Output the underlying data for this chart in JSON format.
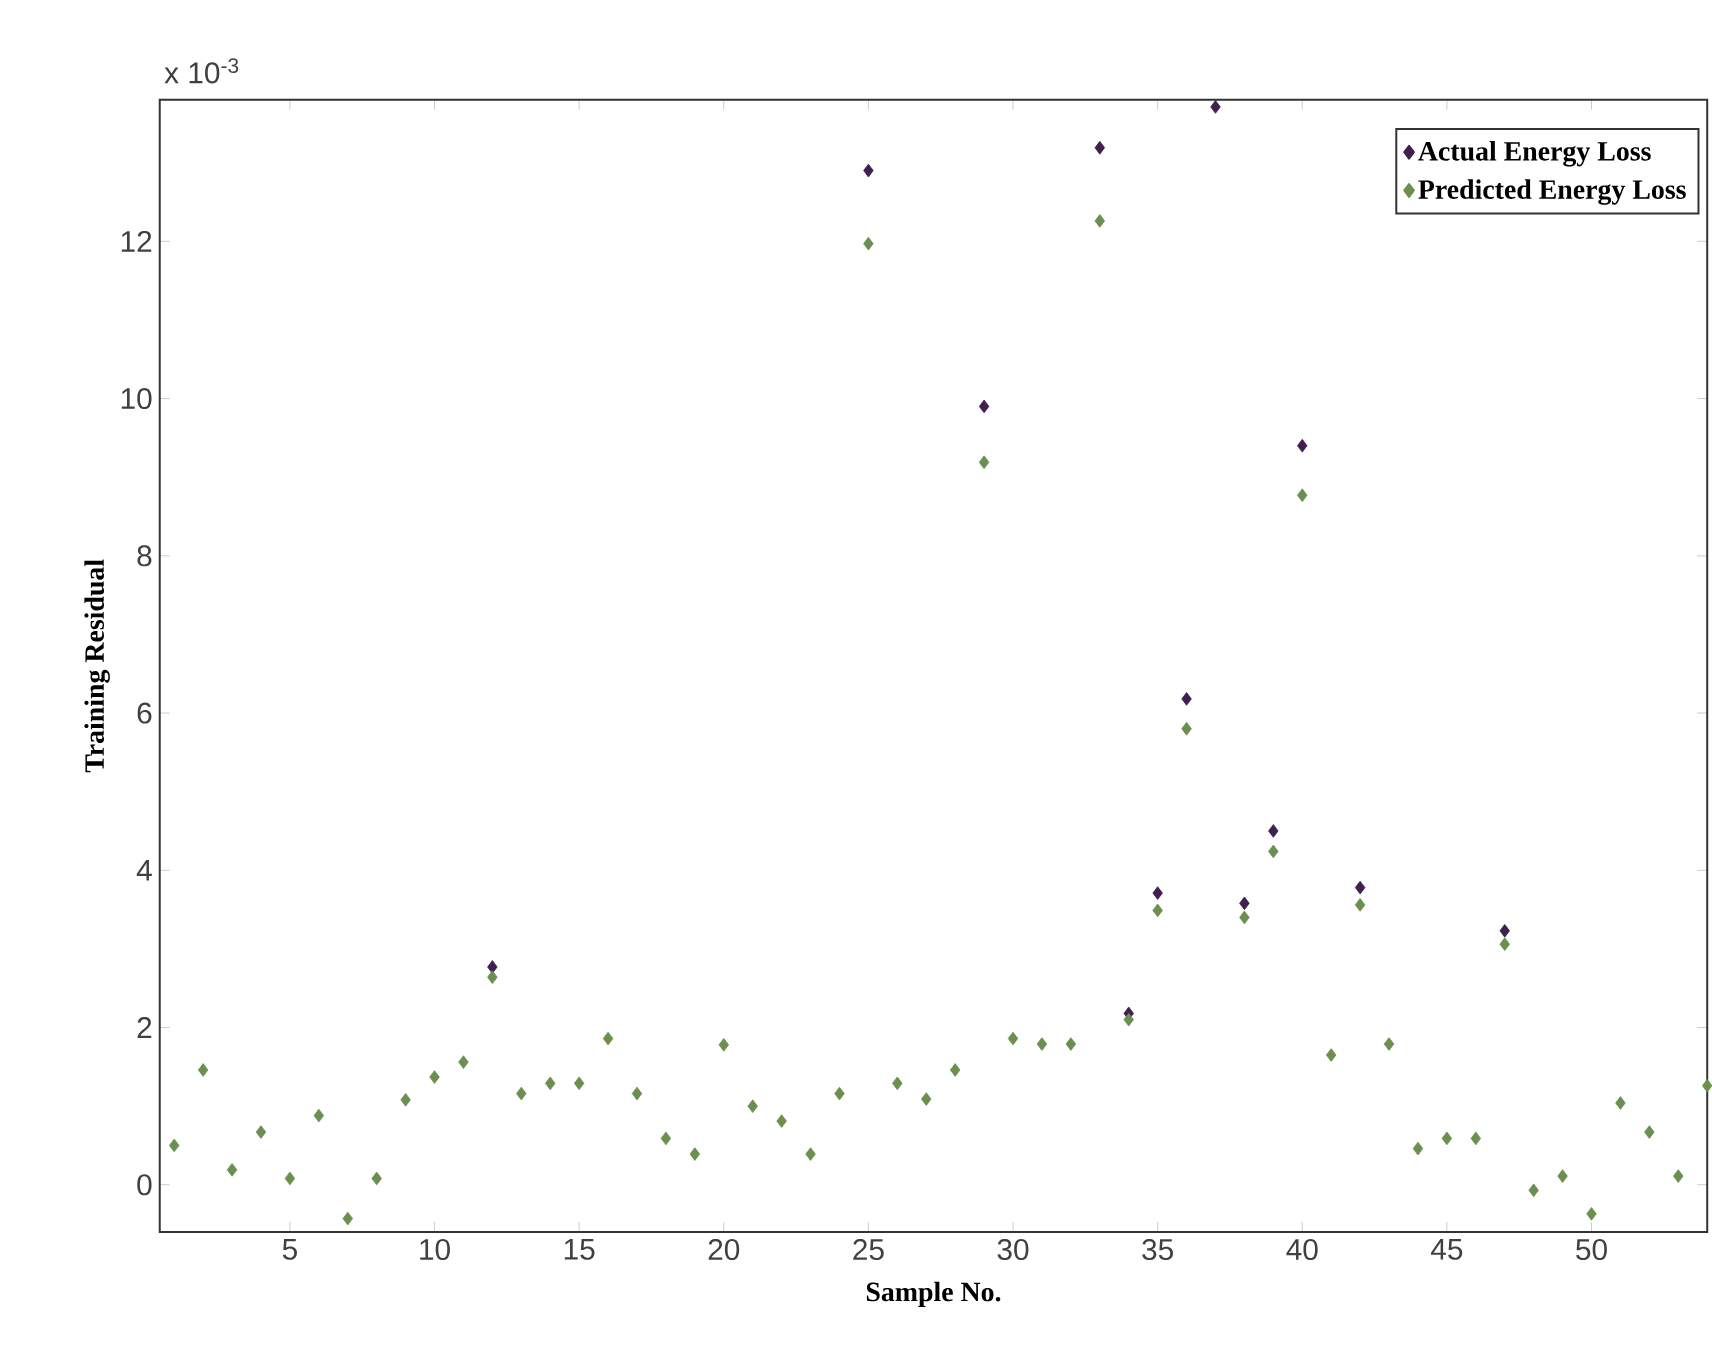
{
  "chart_data": {
    "type": "scatter",
    "xlabel": "Sample No.",
    "ylabel": "Training Residual",
    "annotations": [
      "x 10$^{-3}$"
    ],
    "x": [
      1,
      2,
      3,
      4,
      5,
      6,
      7,
      8,
      9,
      10,
      11,
      12,
      13,
      14,
      15,
      16,
      17,
      18,
      19,
      20,
      21,
      22,
      23,
      24,
      25,
      26,
      27,
      28,
      29,
      30,
      31,
      32,
      33,
      34,
      35,
      36,
      37,
      38,
      39,
      40,
      41,
      42,
      43,
      44,
      45,
      46,
      47,
      48,
      49,
      50,
      51,
      52,
      53,
      54
    ],
    "xlim": [
      0.5,
      54
    ],
    "ylim": [
      -0.6,
      13.8
    ],
    "xticks": [
      5,
      10,
      15,
      20,
      25,
      30,
      35,
      40,
      45,
      50
    ],
    "yticks": [
      0,
      2,
      4,
      6,
      8,
      10,
      12
    ],
    "marker": "diamond",
    "legend": "top right",
    "series": [
      {
        "name": "Actual Energy Loss",
        "color": "#3f1f4f",
        "values": [
          null,
          null,
          null,
          null,
          null,
          null,
          null,
          null,
          null,
          null,
          null,
          2.77,
          null,
          null,
          null,
          null,
          null,
          null,
          null,
          null,
          null,
          null,
          null,
          null,
          12.9,
          null,
          null,
          null,
          9.9,
          null,
          null,
          null,
          13.19,
          2.18,
          3.71,
          6.18,
          13.71,
          3.58,
          4.5,
          9.4,
          null,
          3.78,
          null,
          null,
          null,
          null,
          3.23,
          null,
          null,
          null,
          null,
          null,
          null,
          null
        ]
      },
      {
        "name": "Predicted Energy Loss",
        "color": "#6b8f4f",
        "values": [
          0.5,
          1.46,
          0.19,
          0.67,
          0.08,
          0.88,
          -0.43,
          0.08,
          1.08,
          1.37,
          1.56,
          2.64,
          1.16,
          1.29,
          1.29,
          1.86,
          1.16,
          0.59,
          0.39,
          1.78,
          1.0,
          0.81,
          0.39,
          1.16,
          11.97,
          1.29,
          1.09,
          1.46,
          9.19,
          1.86,
          1.79,
          1.79,
          12.26,
          2.1,
          3.49,
          5.8,
          null,
          3.4,
          4.24,
          8.77,
          1.65,
          3.56,
          1.79,
          0.46,
          0.59,
          0.59,
          3.06,
          -0.07,
          0.11,
          -0.37,
          1.04,
          0.67,
          0.11,
          1.26
        ]
      }
    ]
  }
}
